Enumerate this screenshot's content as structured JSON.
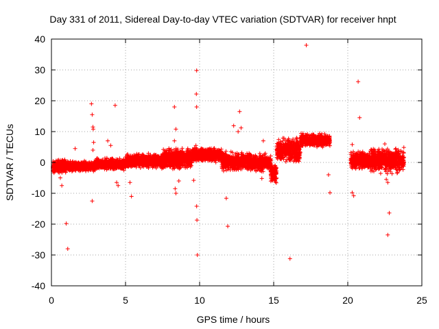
{
  "chart_data": {
    "type": "scatter",
    "title": "Day 331 of 2011, Sidereal Day-to-day VTEC variation (SDTVAR) for receiver hnpt",
    "xlabel": "GPS time / hours",
    "ylabel": "SDTVAR / TECUs",
    "xlim": [
      0,
      25
    ],
    "ylim": [
      -40,
      40
    ],
    "xticks": [
      0,
      5,
      10,
      15,
      20,
      25
    ],
    "yticks": [
      -40,
      -30,
      -20,
      -10,
      0,
      10,
      20,
      30,
      40
    ],
    "grid": true,
    "marker": "+",
    "color": "#ff0000",
    "series": [
      {
        "name": "SDTVAR",
        "bands": [
          {
            "x": [
              0.1,
              1.0
            ],
            "low": -3.5,
            "high": 1.0,
            "note": "dense band"
          },
          {
            "x": [
              1.0,
              3.0
            ],
            "low": -3.0,
            "high": 0.5
          },
          {
            "x": [
              3.0,
              5.0
            ],
            "low": -2.5,
            "high": 1.5
          },
          {
            "x": [
              5.0,
              7.5
            ],
            "low": -2.0,
            "high": 3.0
          },
          {
            "x": [
              7.5,
              9.5
            ],
            "low": -2.5,
            "high": 5.0
          },
          {
            "x": [
              9.5,
              11.5
            ],
            "low": 0.0,
            "high": 5.0
          },
          {
            "x": [
              11.5,
              13.5
            ],
            "low": -3.0,
            "high": 3.5
          },
          {
            "x": [
              13.5,
              14.8
            ],
            "low": -3.0,
            "high": 3.0
          },
          {
            "x": [
              14.8,
              15.2
            ],
            "low": -7.0,
            "high": 0.0
          },
          {
            "x": [
              15.2,
              16.0
            ],
            "low": 0.0,
            "high": 8.0
          },
          {
            "x": [
              16.0,
              16.8
            ],
            "low": -1.0,
            "high": 8.5
          },
          {
            "x": [
              16.8,
              18.8
            ],
            "low": 5.0,
            "high": 9.5
          },
          {
            "x": [
              20.2,
              21.5
            ],
            "low": -2.5,
            "high": 4.0
          },
          {
            "x": [
              21.5,
              23.8
            ],
            "low": -3.5,
            "high": 5.0
          }
        ],
        "outliers": [
          [
            0.6,
            -5
          ],
          [
            0.7,
            -7.5
          ],
          [
            1.0,
            -19.8
          ],
          [
            1.1,
            -28
          ],
          [
            1.6,
            4.5
          ],
          [
            2.7,
            19
          ],
          [
            2.75,
            15.5
          ],
          [
            2.8,
            11.5
          ],
          [
            2.82,
            10.8
          ],
          [
            2.85,
            6.5
          ],
          [
            2.8,
            4
          ],
          [
            2.75,
            -12.5
          ],
          [
            3.8,
            7
          ],
          [
            4.0,
            5.5
          ],
          [
            4.3,
            18.5
          ],
          [
            4.4,
            -6.5
          ],
          [
            4.5,
            -7.5
          ],
          [
            5.3,
            -6.5
          ],
          [
            5.4,
            -11
          ],
          [
            8.3,
            18
          ],
          [
            8.4,
            10.8
          ],
          [
            8.3,
            7
          ],
          [
            8.35,
            -8.5
          ],
          [
            8.4,
            -10
          ],
          [
            8.6,
            -6
          ],
          [
            9.2,
            4.5
          ],
          [
            9.6,
            -5.8
          ],
          [
            9.8,
            29.8
          ],
          [
            9.78,
            22.2
          ],
          [
            9.8,
            18
          ],
          [
            9.75,
            5.5
          ],
          [
            9.8,
            -14.2
          ],
          [
            9.82,
            -18.7
          ],
          [
            9.85,
            -30
          ],
          [
            11.8,
            -11.6
          ],
          [
            11.9,
            -20.7
          ],
          [
            12.3,
            11.9
          ],
          [
            12.7,
            16.5
          ],
          [
            12.8,
            11.2
          ],
          [
            12.6,
            10
          ],
          [
            14.3,
            7
          ],
          [
            14.2,
            -5.2
          ],
          [
            16.1,
            -31.2
          ],
          [
            17.2,
            38
          ],
          [
            18.3,
            5
          ],
          [
            18.7,
            -4
          ],
          [
            18.8,
            -9.8
          ],
          [
            20.3,
            -9.8
          ],
          [
            20.4,
            -10.8
          ],
          [
            20.3,
            5.8
          ],
          [
            20.7,
            26.2
          ],
          [
            20.8,
            14.5
          ],
          [
            22.5,
            6
          ],
          [
            22.6,
            -5.5
          ],
          [
            22.7,
            -6.5
          ],
          [
            22.7,
            -23.5
          ],
          [
            22.8,
            -16.4
          ]
        ]
      }
    ]
  }
}
